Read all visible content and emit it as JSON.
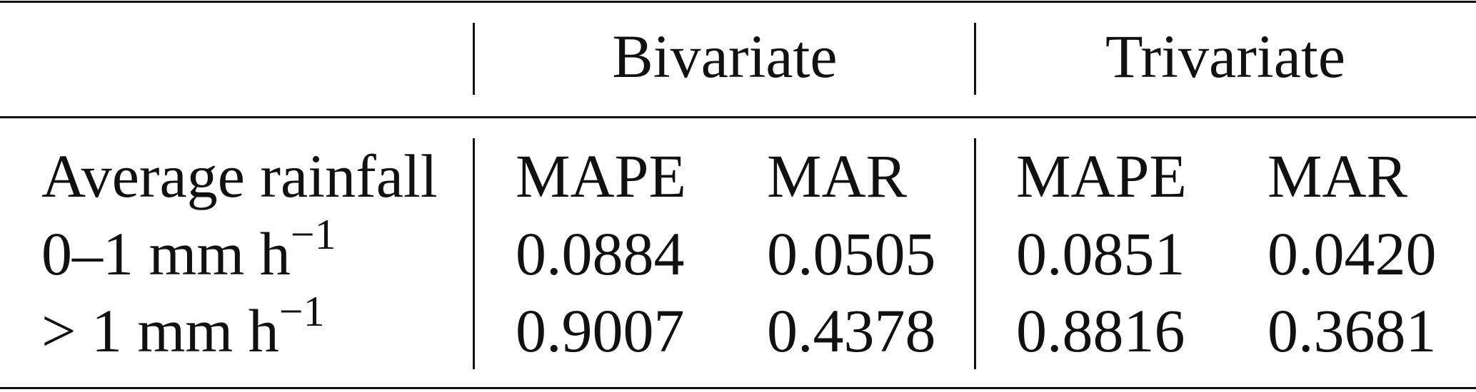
{
  "table": {
    "groups": [
      "Bivariate",
      "Trivariate"
    ],
    "columns": [
      "Average rainfall",
      "MAPE",
      "MAR",
      "MAPE",
      "MAR"
    ],
    "rows": [
      {
        "label": "0–1 mm h",
        "label_sup": "−1",
        "cells": [
          "0.0884",
          "0.0505",
          "0.0851",
          "0.0420"
        ]
      },
      {
        "label": "> 1 mm h",
        "label_sup": "−1",
        "cells": [
          "0.9007",
          "0.4378",
          "0.8816",
          "0.3681"
        ]
      }
    ]
  }
}
